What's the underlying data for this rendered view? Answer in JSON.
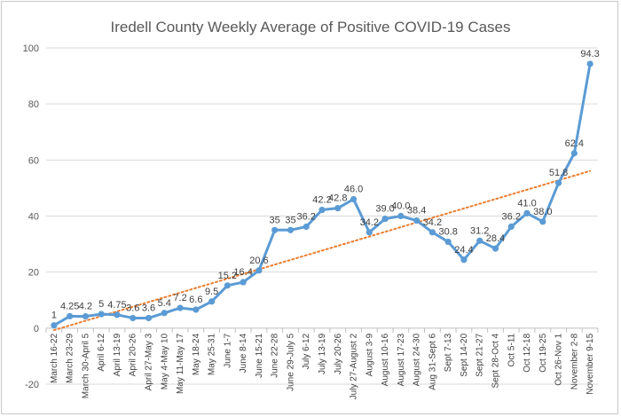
{
  "chart_data": {
    "type": "line",
    "title": "Iredell County Weekly Average of Positive COVID-19 Cases",
    "xlabel": "",
    "ylabel": "",
    "ylim": [
      -20,
      100
    ],
    "yticks": [
      -20,
      0,
      20,
      40,
      60,
      80,
      100
    ],
    "grid": true,
    "legend": "none",
    "colors": {
      "series": "#5b9bd5",
      "trendline": "#ed7d31",
      "grid": "#d9d9d9",
      "text": "#595959"
    },
    "categories": [
      "March 16-22",
      "March 23-29",
      "March 30-April 5",
      "April 6-12",
      "April 13-19",
      "April 20-26",
      "April 27-May 3",
      "May 4-May 10",
      "May 11-May 17",
      "May 18-24",
      "May 25-31",
      "June 1-7",
      "June 8-14",
      "June 15-21",
      "June 22-28",
      "June 29-July 5",
      "July 6-12",
      "July 13-19",
      "July 20-26",
      "July 27-August 2",
      "August 3-9",
      "August 10-16",
      "August 17-23",
      "August 24-30",
      "Aug 31-Sept 6",
      "Sept 7-13",
      "Sept 14-20",
      "Sept 21-27",
      "Sept 28-Oct 4",
      "Oct 5-11",
      "Oct 12-18",
      "Oct 19-25",
      "Oct 26-Nov 1",
      "November 2-8",
      "November 9-15"
    ],
    "series": [
      {
        "values": [
          1,
          4.25,
          4.2,
          5,
          4.75,
          3.6,
          3.6,
          5.4,
          7.2,
          6.6,
          9.5,
          15.2,
          16.4,
          20.6,
          35,
          35,
          36.2,
          42.2,
          42.8,
          46.0,
          34.2,
          39.0,
          40.0,
          38.4,
          34.2,
          30.8,
          24.4,
          31.2,
          28.4,
          36.2,
          41.0,
          38.0,
          51.8,
          62.4,
          94.3
        ],
        "labels": [
          "1",
          "4.25",
          "4.2",
          "5",
          "4.75",
          "3.6",
          "3.6",
          "5.4",
          "7.2",
          "6.6",
          "9.5",
          "15.2",
          "16.4",
          "20.6",
          "35",
          "35",
          "36.2",
          "42.2",
          "42.8",
          "46.0",
          "34.2",
          "39.0",
          "40.0",
          "38.4",
          "34.2",
          "30.8",
          "24.4",
          "31.2",
          "28.4",
          "36.2",
          "41.0",
          "38.0",
          "51.8",
          "62.4",
          "94.3"
        ]
      }
    ],
    "trendline": {
      "type": "linear",
      "style": "dotted"
    }
  }
}
